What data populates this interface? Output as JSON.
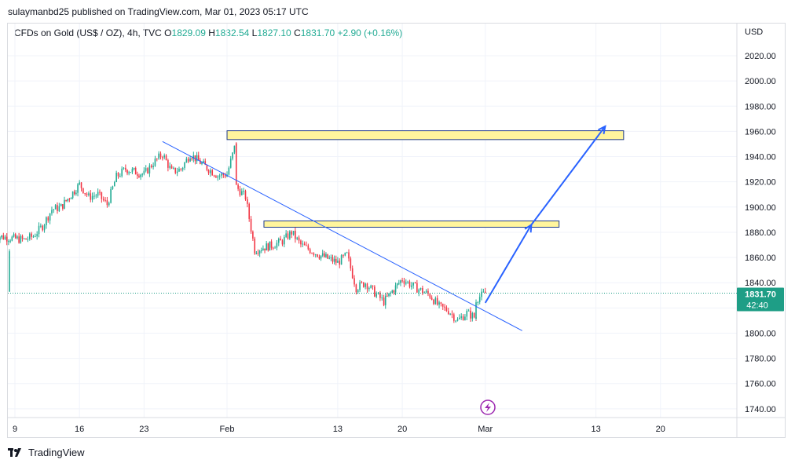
{
  "header": {
    "published": "sulaymanbd25 published on TradingView.com, Mar 01, 2023 05:17 UTC"
  },
  "legend": {
    "symbol": "CFDs on Gold (US$ / OZ), 4h, TVC",
    "open_label": "O",
    "open": "1829.09",
    "high_label": "H",
    "high": "1832.54",
    "low_label": "L",
    "low": "1827.10",
    "close_label": "C",
    "close": "1831.70",
    "change": "+2.90 (+0.16%)"
  },
  "footer": {
    "brand": "TradingView"
  },
  "colors": {
    "up": "#22ab94",
    "down": "#f23645",
    "zone_fill": "#fff59d",
    "zone_stroke": "#1e3a8a",
    "line": "#2962ff",
    "price_tag": "#1e9e86"
  },
  "chart_data": {
    "type": "candlestick",
    "currency_label": "USD",
    "ylim": [
      1730,
      2035
    ],
    "y_ticks": [
      2020,
      2000,
      1980,
      1960,
      1940,
      1920,
      1900,
      1880,
      1860,
      1840,
      1820,
      1800,
      1780,
      1760,
      1740
    ],
    "y_tick_labels": [
      "2020.00",
      "2000.00",
      "1980.00",
      "1960.00",
      "1940.00",
      "1920.00",
      "1900.00",
      "1880.00",
      "1860.00",
      "1840.00",
      "1820.00",
      "1800.00",
      "1780.00",
      "1760.00",
      "1740.00"
    ],
    "x_ticks": [
      "2023-01-09",
      "2023-01-16",
      "2023-01-23",
      "2023-02-01",
      "2023-02-13",
      "2023-02-20",
      "2023-03-01",
      "2023-03-13",
      "2023-03-20"
    ],
    "x_tick_labels": [
      "9",
      "16",
      "23",
      "Feb",
      "13",
      "20",
      "Mar",
      "13",
      "20"
    ],
    "last_price": {
      "value": 1831.7,
      "label": "1831.70",
      "countdown": "42:40"
    },
    "price_path": [
      [
        "2023-01-06",
        1833
      ],
      [
        "2023-01-06",
        1865
      ],
      [
        "2023-01-07",
        1877
      ],
      [
        "2023-01-10",
        1874
      ],
      [
        "2023-01-11",
        1877
      ],
      [
        "2023-01-12",
        1885
      ],
      [
        "2023-01-13",
        1898
      ],
      [
        "2023-01-14",
        1900
      ],
      [
        "2023-01-16",
        1918
      ],
      [
        "2023-01-17",
        1908
      ],
      [
        "2023-01-18",
        1910
      ],
      [
        "2023-01-19",
        1902
      ],
      [
        "2023-01-20",
        1924
      ],
      [
        "2023-01-21",
        1930
      ],
      [
        "2023-01-23",
        1926
      ],
      [
        "2023-01-24",
        1935
      ],
      [
        "2023-01-25",
        1942
      ],
      [
        "2023-01-26",
        1928
      ],
      [
        "2023-01-27",
        1930
      ],
      [
        "2023-01-28",
        1942
      ],
      [
        "2023-01-30",
        1930
      ],
      [
        "2023-01-31",
        1925
      ],
      [
        "2023-02-01",
        1926
      ],
      [
        "2023-02-02",
        1952
      ],
      [
        "2023-02-02",
        1916
      ],
      [
        "2023-02-03",
        1908
      ],
      [
        "2023-02-04",
        1866
      ],
      [
        "2023-02-06",
        1870
      ],
      [
        "2023-02-07",
        1873
      ],
      [
        "2023-02-08",
        1880
      ],
      [
        "2023-02-09",
        1870
      ],
      [
        "2023-02-10",
        1866
      ],
      [
        "2023-02-11",
        1862
      ],
      [
        "2023-02-13",
        1856
      ],
      [
        "2023-02-14",
        1862
      ],
      [
        "2023-02-15",
        1836
      ],
      [
        "2023-02-16",
        1840
      ],
      [
        "2023-02-17",
        1832
      ],
      [
        "2023-02-18",
        1825
      ],
      [
        "2023-02-20",
        1843
      ],
      [
        "2023-02-21",
        1838
      ],
      [
        "2023-02-22",
        1834
      ],
      [
        "2023-02-23",
        1830
      ],
      [
        "2023-02-24",
        1821
      ],
      [
        "2023-02-25",
        1818
      ],
      [
        "2023-02-26",
        1810
      ],
      [
        "2023-02-27",
        1816
      ],
      [
        "2023-02-28",
        1812
      ],
      [
        "2023-02-28",
        1827
      ],
      [
        "2023-03-01",
        1831.7
      ]
    ],
    "annotations": {
      "zones": [
        {
          "from": "2023-02-01",
          "to": "2023-03-16",
          "top": 1960.5,
          "bottom": 1953.5
        },
        {
          "from": "2023-02-05",
          "to": "2023-03-09",
          "top": 1889,
          "bottom": 1884
        }
      ],
      "trendline": {
        "from": [
          "2023-01-25",
          1952
        ],
        "to": [
          "2023-03-05",
          1802
        ]
      },
      "projection": [
        [
          "2023-03-01",
          1824
        ],
        [
          "2023-03-06",
          1886
        ],
        [
          "2023-03-14",
          1964
        ]
      ]
    }
  }
}
